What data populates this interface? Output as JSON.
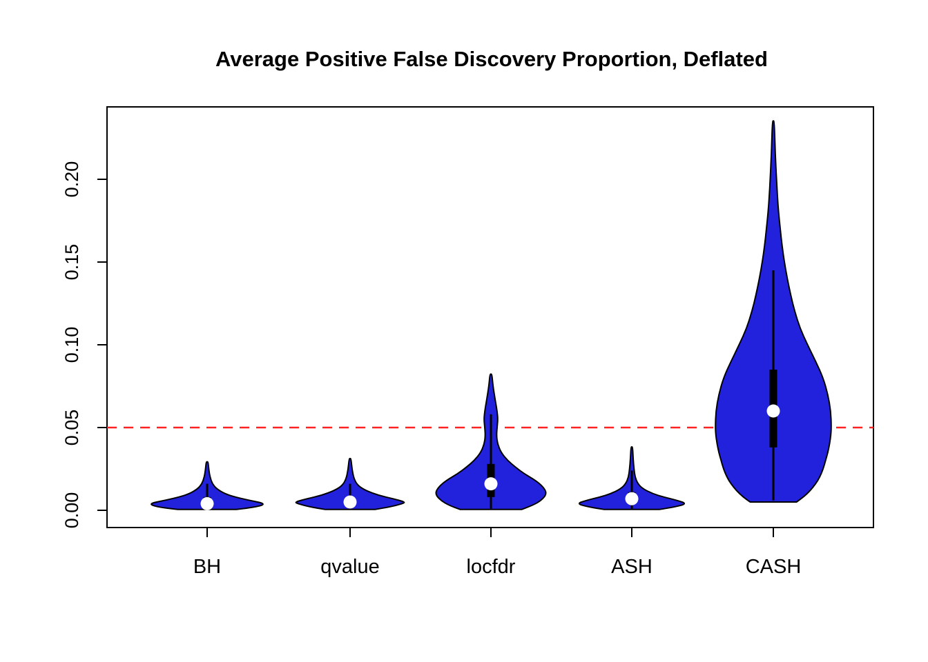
{
  "title": "Average Positive False Discovery Proportion, Deflated",
  "chart_data": {
    "type": "violin",
    "title": "Average Positive False Discovery Proportion, Deflated",
    "xlabel": "",
    "ylabel": "",
    "categories": [
      "BH",
      "qvalue",
      "locfdr",
      "ASH",
      "CASH"
    ],
    "y_ticks": [
      0.0,
      0.05,
      0.1,
      0.15,
      0.2
    ],
    "y_tick_labels": [
      "0.00",
      "0.05",
      "0.10",
      "0.15",
      "0.20"
    ],
    "ylim": [
      0,
      0.244
    ],
    "grid": false,
    "legend": "none",
    "violin_fill": "#2222DD",
    "violin_stroke": "#000000",
    "reference_line": {
      "value": 0.05,
      "color": "#FF2222",
      "style": "dashed"
    },
    "series": [
      {
        "name": "BH",
        "median": 0.004,
        "q1": 0.002,
        "q3": 0.008,
        "whisker_low": 0.001,
        "whisker_high": 0.016,
        "min": 0.0,
        "max": 0.029,
        "density": [
          [
            0.0005,
            0.5
          ],
          [
            0.002,
            0.85
          ],
          [
            0.004,
            1.0
          ],
          [
            0.006,
            0.72
          ],
          [
            0.008,
            0.48
          ],
          [
            0.01,
            0.3
          ],
          [
            0.013,
            0.16
          ],
          [
            0.016,
            0.09
          ],
          [
            0.02,
            0.05
          ],
          [
            0.024,
            0.03
          ],
          [
            0.029,
            0.018
          ]
        ]
      },
      {
        "name": "qvalue",
        "median": 0.005,
        "q1": 0.003,
        "q3": 0.008,
        "whisker_low": 0.001,
        "whisker_high": 0.016,
        "min": 0.0,
        "max": 0.031,
        "density": [
          [
            0.0005,
            0.45
          ],
          [
            0.002,
            0.72
          ],
          [
            0.004,
            0.95
          ],
          [
            0.005,
            1.0
          ],
          [
            0.007,
            0.78
          ],
          [
            0.009,
            0.52
          ],
          [
            0.012,
            0.28
          ],
          [
            0.015,
            0.14
          ],
          [
            0.019,
            0.07
          ],
          [
            0.025,
            0.035
          ],
          [
            0.031,
            0.018
          ]
        ]
      },
      {
        "name": "locfdr",
        "median": 0.016,
        "q1": 0.008,
        "q3": 0.028,
        "whisker_low": 0.001,
        "whisker_high": 0.058,
        "min": 0.0,
        "max": 0.082,
        "density": [
          [
            0.0005,
            0.55
          ],
          [
            0.003,
            0.75
          ],
          [
            0.006,
            0.9
          ],
          [
            0.01,
            1.0
          ],
          [
            0.014,
            0.94
          ],
          [
            0.018,
            0.8
          ],
          [
            0.022,
            0.6
          ],
          [
            0.026,
            0.44
          ],
          [
            0.03,
            0.3
          ],
          [
            0.035,
            0.18
          ],
          [
            0.04,
            0.12
          ],
          [
            0.045,
            0.1
          ],
          [
            0.05,
            0.11
          ],
          [
            0.055,
            0.125
          ],
          [
            0.06,
            0.11
          ],
          [
            0.065,
            0.085
          ],
          [
            0.07,
            0.06
          ],
          [
            0.076,
            0.035
          ],
          [
            0.082,
            0.018
          ]
        ]
      },
      {
        "name": "ASH",
        "median": 0.007,
        "q1": 0.004,
        "q3": 0.011,
        "whisker_low": 0.001,
        "whisker_high": 0.024,
        "min": 0.0,
        "max": 0.038,
        "density": [
          [
            0.0005,
            0.5
          ],
          [
            0.002,
            0.78
          ],
          [
            0.004,
            1.0
          ],
          [
            0.006,
            0.82
          ],
          [
            0.008,
            0.58
          ],
          [
            0.01,
            0.38
          ],
          [
            0.013,
            0.2
          ],
          [
            0.016,
            0.11
          ],
          [
            0.02,
            0.06
          ],
          [
            0.025,
            0.04
          ],
          [
            0.031,
            0.025
          ],
          [
            0.038,
            0.015
          ]
        ]
      },
      {
        "name": "CASH",
        "median": 0.06,
        "q1": 0.038,
        "q3": 0.085,
        "whisker_low": 0.006,
        "whisker_high": 0.145,
        "min": 0.005,
        "max": 0.235,
        "density": [
          [
            0.005,
            0.4
          ],
          [
            0.008,
            0.52
          ],
          [
            0.012,
            0.64
          ],
          [
            0.016,
            0.73
          ],
          [
            0.02,
            0.8
          ],
          [
            0.025,
            0.86
          ],
          [
            0.03,
            0.9
          ],
          [
            0.035,
            0.94
          ],
          [
            0.04,
            0.97
          ],
          [
            0.045,
            0.99
          ],
          [
            0.05,
            1.0
          ],
          [
            0.06,
            0.99
          ],
          [
            0.07,
            0.94
          ],
          [
            0.08,
            0.86
          ],
          [
            0.09,
            0.73
          ],
          [
            0.1,
            0.59
          ],
          [
            0.11,
            0.46
          ],
          [
            0.12,
            0.37
          ],
          [
            0.13,
            0.3
          ],
          [
            0.14,
            0.24
          ],
          [
            0.15,
            0.19
          ],
          [
            0.16,
            0.15
          ],
          [
            0.17,
            0.12
          ],
          [
            0.18,
            0.09
          ],
          [
            0.19,
            0.07
          ],
          [
            0.2,
            0.055
          ],
          [
            0.21,
            0.04
          ],
          [
            0.22,
            0.03
          ],
          [
            0.235,
            0.015
          ]
        ]
      }
    ]
  }
}
